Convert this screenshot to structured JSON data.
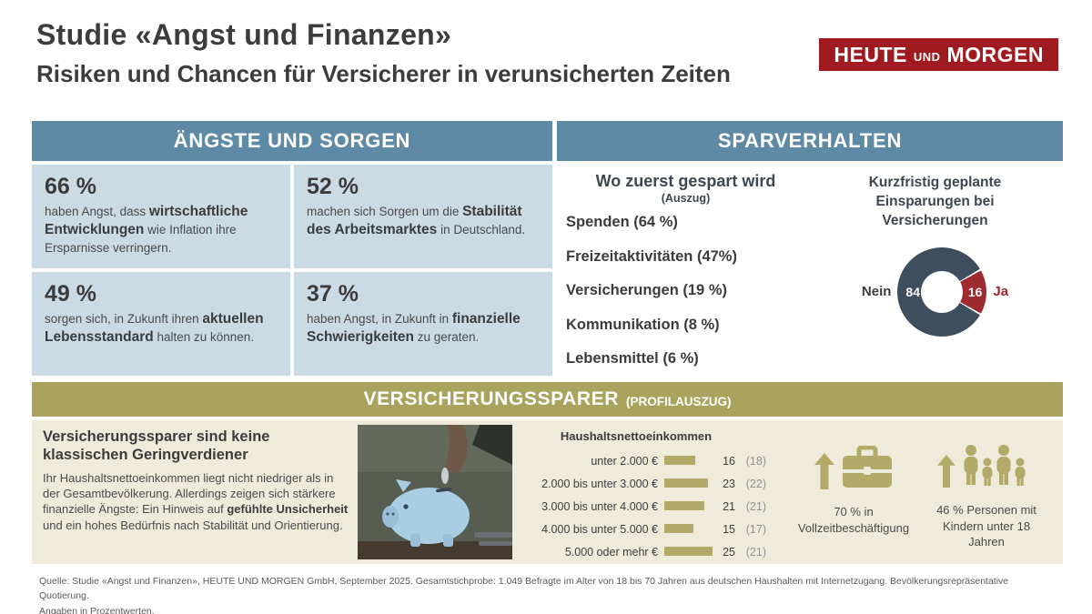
{
  "header": {
    "title": "Studie «Angst und Finanzen»",
    "subtitle": "Risiken und Chancen für Versicherer in verunsicherten Zeiten",
    "logo": {
      "word1": "HEUTE",
      "word2": "UND",
      "word3": "MORGEN"
    }
  },
  "fears": {
    "header": "ÄNGSTE UND SORGEN",
    "stats": [
      {
        "value": "66 %",
        "pre": "haben Angst, dass ",
        "bold": "wirtschaftliche Entwicklungen",
        "post": " wie Inflation ihre Ersparnisse verringern."
      },
      {
        "value": "52 %",
        "pre": "machen sich Sorgen um die ",
        "bold": "Stabilität des Arbeitsmarktes",
        "post": " in Deutschland."
      },
      {
        "value": "49 %",
        "pre": "sorgen sich, in Zukunft ihren ",
        "bold": "aktuellen Lebensstandard",
        "post": " halten zu können."
      },
      {
        "value": "37 %",
        "pre": "haben Angst, in Zukunft in ",
        "bold": "finanzielle Schwierigkeiten",
        "post": " zu geraten."
      }
    ]
  },
  "savings": {
    "header": "SPARVERHALTEN",
    "list_title": "Wo zuerst gespart wird",
    "list_subtitle": "(Auszug)",
    "items": [
      "Spenden (64 %)",
      "Freizeitaktivitäten (47%)",
      "Versicherungen (19 %)",
      "Kommunikation (8 %)",
      "Lebensmittel (6 %)"
    ],
    "donut_title": "Kurzfristig geplante Einsparungen bei Versicherungen",
    "donut": {
      "no_label": "Nein",
      "no_value": "84",
      "yes_value": "16",
      "yes_label": "Ja"
    }
  },
  "profile": {
    "band_title": "VERSICHERUNGSSPARER",
    "band_suffix": "(PROFILAUSZUG)",
    "headline": "Versicherungssparer sind keine klassischen Geringverdiener",
    "body_pre": "Ihr Haushaltsnettoeinkommen liegt nicht niedriger als in der Gesamtbevölkerung. Allerdings zeigen sich stärkere finanzielle Ängste: Ein Hinweis auf ",
    "body_bold": "gefühlte Unsicherheit",
    "body_post": " und ein hohes Bedürfnis nach Stabilität und Orientierung.",
    "income": {
      "title": "Haushaltsnettoeinkommen",
      "rows": [
        {
          "label": "unter 2.000 €",
          "value": 16,
          "compare": "(18)"
        },
        {
          "label": "2.000 bis unter 3.000 €",
          "value": 23,
          "compare": "(22)"
        },
        {
          "label": "3.000 bis unter 4.000 €",
          "value": 21,
          "compare": "(21)"
        },
        {
          "label": "4.000 bis unter 5.000 €",
          "value": 15,
          "compare": "(17)"
        },
        {
          "label": "5.000 oder mehr €",
          "value": 25,
          "compare": "(21)"
        }
      ]
    },
    "employment_text": "70 % in Vollzeitbeschäftigung",
    "children_text": "46 % Personen mit Kindern unter 18 Jahren"
  },
  "footer": {
    "line1": "Quelle: Studie «Angst und Finanzen», HEUTE UND MORGEN GmbH, September 2025. Gesamtstichprobe: 1.049 Befragte im Alter von 18 bis 70 Jahren aus deutschen Haushalten mit Internetzugang. Bevölkerungsrepräsentative Quotierung.",
    "line2": "Angaben in Prozentwerten."
  },
  "colors": {
    "band_blue": "#5E8AA5",
    "box_blue": "#CADBE6",
    "band_olive": "#A9A35D",
    "beige": "#EFEBDA",
    "bar_olive": "#B3A968",
    "logo_red": "#A01B20",
    "donut_dark": "#3E4E5D",
    "donut_red": "#9E2B2F"
  },
  "chart_data": [
    {
      "type": "pie",
      "donut": true,
      "title": "Kurzfristig geplante Einsparungen bei Versicherungen",
      "categories": [
        "Nein",
        "Ja"
      ],
      "values": [
        84,
        16
      ],
      "colors": [
        "#3E4E5D",
        "#9E2B2F"
      ],
      "labels_position": "inside-ring"
    },
    {
      "type": "bar",
      "orientation": "horizontal",
      "title": "Haushaltsnettoeinkommen",
      "categories": [
        "unter 2.000 €",
        "2.000 bis unter 3.000 €",
        "3.000 bis unter 4.000 €",
        "4.000 bis unter 5.000 €",
        "5.000 oder mehr €"
      ],
      "values": [
        16,
        23,
        21,
        15,
        25
      ],
      "values_in_brackets": [
        18,
        22,
        21,
        17,
        21
      ],
      "xlim": [
        0,
        30
      ],
      "grid": false
    }
  ]
}
